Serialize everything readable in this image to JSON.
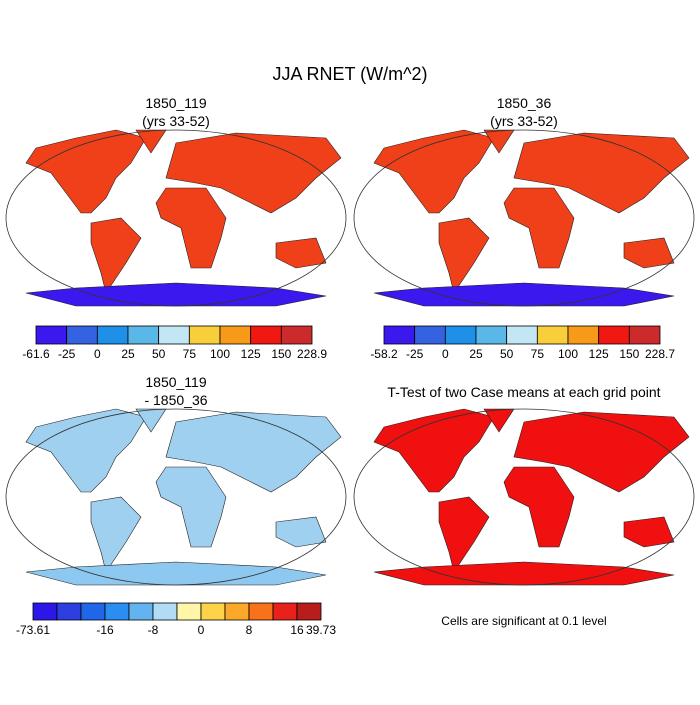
{
  "title": "JJA RNET (W/m^2)",
  "panels": [
    {
      "title": [
        "1850_119",
        "(yrs 33-52)"
      ],
      "colorbar": {
        "colors": [
          "#3a18ee",
          "#3562e0",
          "#1e90e8",
          "#5ab8e8",
          "#c2e6f4",
          "#f8cf3a",
          "#f79a1a",
          "#f01810",
          "#cc2b2b"
        ],
        "labels": [
          "-61.6",
          "-25",
          "0",
          "25",
          "50",
          "75",
          "100",
          "125",
          "150",
          "228.9"
        ]
      }
    },
    {
      "title": [
        "1850_36",
        "(yrs 33-52)"
      ],
      "colorbar": {
        "colors": [
          "#3a18ee",
          "#3562e0",
          "#1e90e8",
          "#5ab8e8",
          "#c2e6f4",
          "#f8cf3a",
          "#f79a1a",
          "#f01810",
          "#cc2b2b"
        ],
        "labels": [
          "-58.2",
          "-25",
          "0",
          "25",
          "50",
          "75",
          "100",
          "125",
          "150",
          "228.7"
        ]
      }
    },
    {
      "title": [
        "1850_119",
        "- 1850_36"
      ],
      "colorbar": {
        "colors": [
          "#2a17e8",
          "#2e3fe0",
          "#1f66e8",
          "#2a8ef0",
          "#62b3ef",
          "#b0dcf5",
          "#fff6a8",
          "#fdd34a",
          "#fca82b",
          "#f8721a",
          "#e8211b",
          "#b81d1d"
        ],
        "labels": [
          "-73.61",
          null,
          null,
          "-16",
          null,
          "-8",
          null,
          "0",
          null,
          "8",
          null,
          "16",
          "39.73"
        ]
      }
    },
    {
      "title": [
        "T-Test of two Case means at each grid point"
      ],
      "note": "Cells are significant at 0.1 level"
    }
  ]
}
